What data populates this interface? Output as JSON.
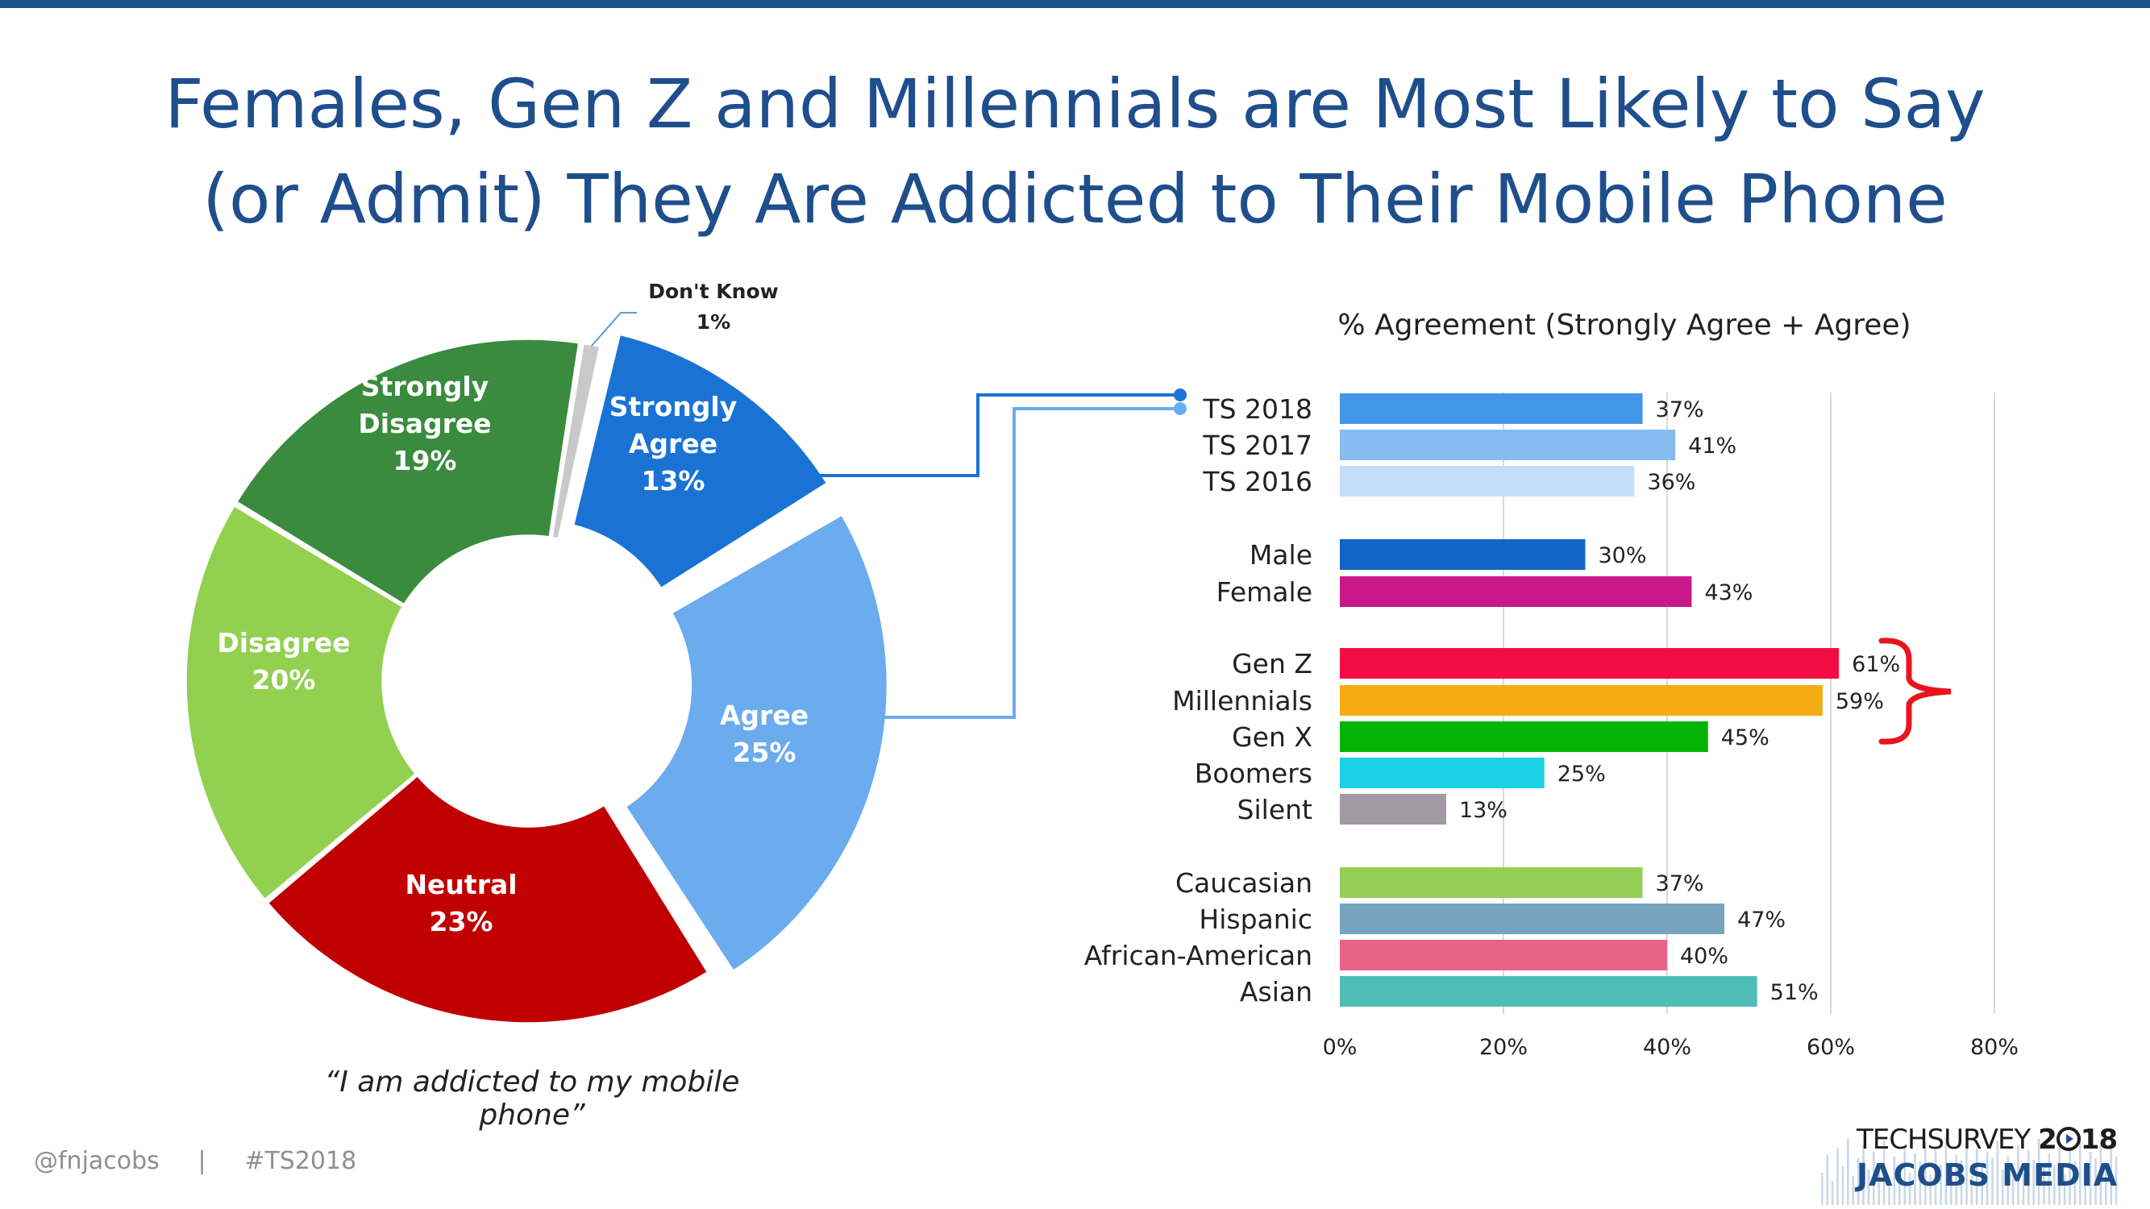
{
  "title": {
    "line1": "Females, Gen Z and Millennials are Most Likely to Say",
    "line2": "(or Admit) They Are Addicted to Their Mobile Phone"
  },
  "caption": "“I am addicted to my mobile phone”",
  "footer": {
    "handle": "@fnjacobs",
    "separator": "|",
    "hashtag": "#TS2018"
  },
  "logo": {
    "line1_prefix": "TECHSURVEY",
    "line1_year_a": "2",
    "line1_year_b": "18",
    "line2": "JACOBS MEDIA"
  },
  "chart_data": [
    {
      "type": "pie",
      "donut": true,
      "slices": [
        {
          "label": "Strongly Agree",
          "value": 13,
          "display": "13%",
          "color": "#1a73d4",
          "exploded": true
        },
        {
          "label": "Agree",
          "value": 25,
          "display": "25%",
          "color": "#6aaced",
          "exploded": true
        },
        {
          "label": "Neutral",
          "value": 23,
          "display": "23%",
          "color": "#c00000",
          "exploded": false
        },
        {
          "label": "Disagree",
          "value": 20,
          "display": "20%",
          "color": "#92d050",
          "exploded": false
        },
        {
          "label": "Strongly Disagree",
          "value": 19,
          "display": "19%",
          "color": "#3a8b3d",
          "exploded": false
        },
        {
          "label": "Don't Know",
          "value": 1,
          "display": "1%",
          "color": "#c9c9c9",
          "exploded": false
        }
      ]
    },
    {
      "type": "bar",
      "orientation": "horizontal",
      "title": "% Agreement (Strongly Agree + Agree)",
      "xlim": [
        0,
        80
      ],
      "xticks": [
        "0%",
        "20%",
        "40%",
        "60%",
        "80%"
      ],
      "bars": [
        {
          "label": "TS 2018",
          "value": 37,
          "display": "37%",
          "color": "#4397e8"
        },
        {
          "label": "TS 2017",
          "value": 41,
          "display": "41%",
          "color": "#86bcf0"
        },
        {
          "label": "TS 2016",
          "value": 36,
          "display": "36%",
          "color": "#c4ddf8"
        },
        {
          "label": "Male",
          "value": 30,
          "display": "30%",
          "color": "#1565c8"
        },
        {
          "label": "Female",
          "value": 43,
          "display": "43%",
          "color": "#c8188a"
        },
        {
          "label": "Gen Z",
          "value": 61,
          "display": "61%",
          "color": "#f40d45"
        },
        {
          "label": "Millennials",
          "value": 59,
          "display": "59%",
          "color": "#f4ac14"
        },
        {
          "label": "Gen X",
          "value": 45,
          "display": "45%",
          "color": "#04b404"
        },
        {
          "label": "Boomers",
          "value": 25,
          "display": "25%",
          "color": "#1cd0e6"
        },
        {
          "label": "Silent",
          "value": 13,
          "display": "13%",
          "color": "#a39aa4"
        },
        {
          "label": "Caucasian",
          "value": 37,
          "display": "37%",
          "color": "#94d055"
        },
        {
          "label": "Hispanic",
          "value": 47,
          "display": "47%",
          "color": "#76a4bf"
        },
        {
          "label": "African-American",
          "value": 40,
          "display": "40%",
          "color": "#e86487"
        },
        {
          "label": "Asian",
          "value": 51,
          "display": "51%",
          "color": "#4fbdb5"
        }
      ],
      "highlight_bracket": {
        "labels": [
          "Gen Z",
          "Millennials"
        ],
        "color": "#e8141e"
      }
    }
  ]
}
